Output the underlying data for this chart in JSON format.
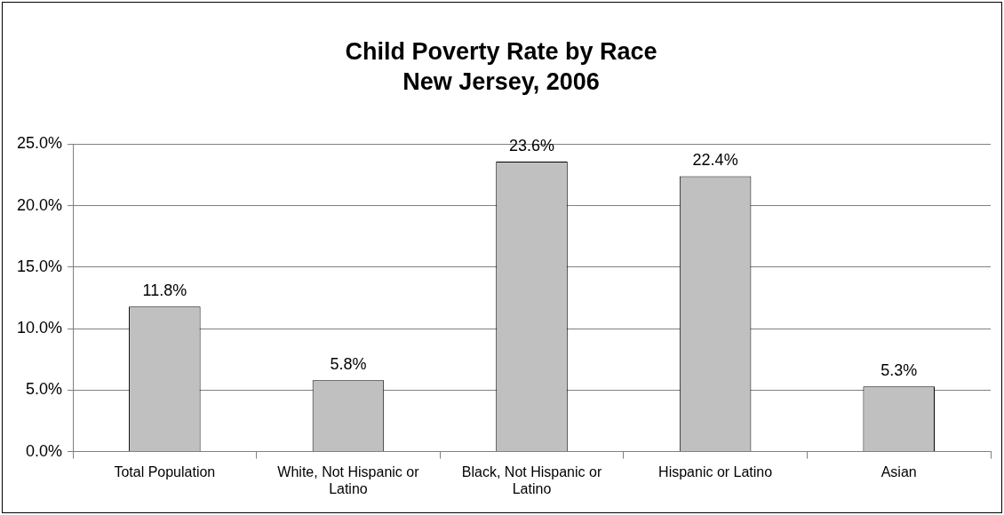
{
  "chart_data": {
    "type": "bar",
    "title": "Child Poverty Rate by Race",
    "subtitle": "New Jersey, 2006",
    "categories": [
      "Total Population",
      "White, Not Hispanic or Latino",
      "Black, Not Hispanic or Latino",
      "Hispanic or Latino",
      "Asian"
    ],
    "values": [
      11.8,
      5.8,
      23.6,
      22.4,
      5.3
    ],
    "value_labels": [
      "11.8%",
      "5.8%",
      "23.6%",
      "22.4%",
      "5.3%"
    ],
    "color": "#c0c0c0",
    "ylim": [
      0,
      25
    ],
    "yticks": [
      {
        "value": 0,
        "label": "0.0%"
      },
      {
        "value": 5,
        "label": "5.0%"
      },
      {
        "value": 10,
        "label": "10.0%"
      },
      {
        "value": 15,
        "label": "15.0%"
      },
      {
        "value": 20,
        "label": "20.0%"
      },
      {
        "value": 25,
        "label": "25.0%"
      }
    ],
    "grid": "y",
    "legend": false
  }
}
